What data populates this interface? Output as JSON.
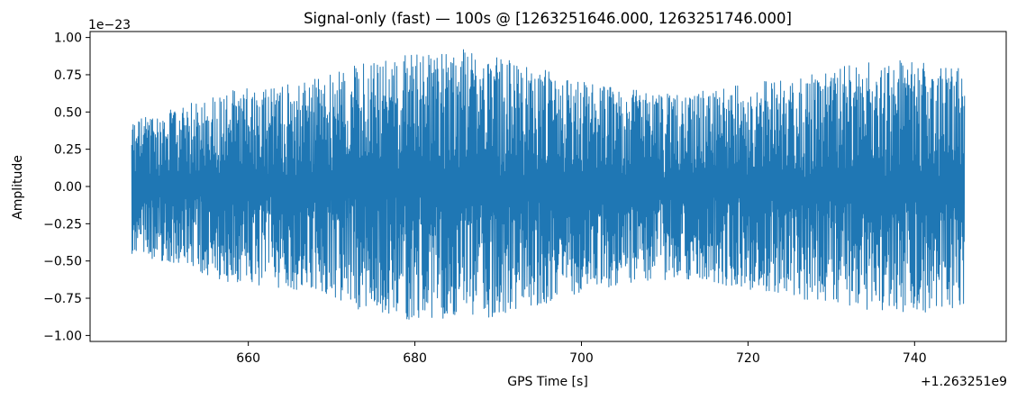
{
  "chart_data": {
    "type": "line",
    "title": "Signal-only (fast) — 100s @ [1263251646.000, 1263251746.000]",
    "xlabel": "GPS Time [s]",
    "ylabel": "Amplitude",
    "x_offset_label": "+1.263251e9",
    "y_scale_label": "1e−23",
    "x_start": 1263251646.0,
    "x_end": 1263251746.0,
    "xlim": [
      1263251641.0,
      1263251751.0
    ],
    "ylim": [
      -1.04e-23,
      1.04e-23
    ],
    "xticks": [
      1263251660,
      1263251680,
      1263251700,
      1263251720,
      1263251740
    ],
    "xtick_labels": [
      "660",
      "680",
      "700",
      "720",
      "740"
    ],
    "yticks": [
      1e-23,
      7.5e-24,
      5e-24,
      2.5e-24,
      0.0,
      -2.5e-24,
      -5e-24,
      -7.5e-24,
      -1e-23
    ],
    "ytick_labels": [
      "1.00",
      "0.75",
      "0.50",
      "0.25",
      "0.00",
      "−0.25",
      "−0.50",
      "−0.75",
      "−1.00"
    ],
    "grid": false,
    "line_color": "#1f77b4",
    "series": [
      {
        "x": [
          1263251646,
          1263251651,
          1263251656,
          1263251661,
          1263251666,
          1263251671,
          1263251676,
          1263251681,
          1263251686,
          1263251691,
          1263251696,
          1263251701,
          1263251706,
          1263251711,
          1263251716,
          1263251721,
          1263251726,
          1263251731,
          1263251736,
          1263251741,
          1263251746
        ],
        "envelope_amplitude": [
          4.5e-24,
          5.2e-24,
          6.2e-24,
          6.8e-24,
          7e-24,
          7.8e-24,
          8.8e-24,
          9e-24,
          9.2e-24,
          8.5e-24,
          7.8e-24,
          7e-24,
          6.5e-24,
          6.2e-24,
          6.5e-24,
          7e-24,
          7.5e-24,
          8e-24,
          8.5e-24,
          8.5e-24,
          8e-24
        ]
      }
    ]
  }
}
